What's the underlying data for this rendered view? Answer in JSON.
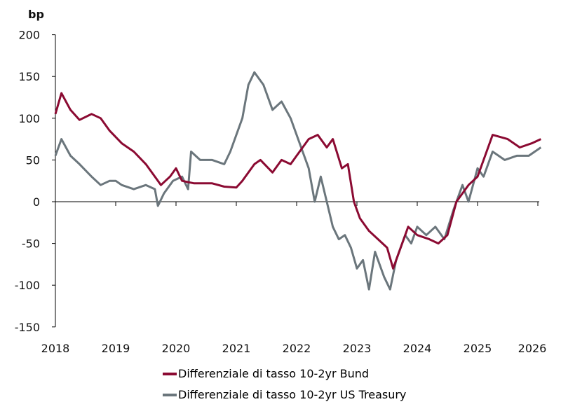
{
  "chart_data": {
    "type": "line",
    "ylabel": "bp",
    "ylim": [
      -150,
      200
    ],
    "yticks": [
      -150,
      -100,
      -50,
      0,
      50,
      100,
      150,
      200
    ],
    "xlim": [
      2018,
      2026.1
    ],
    "xticks": [
      "2018",
      "2019",
      "2020",
      "2021",
      "2022",
      "2023",
      "2024",
      "2025",
      "2026"
    ],
    "grid": false,
    "legend": "bottom",
    "series": [
      {
        "name": "Differenziale di tasso 10-2yr Bund",
        "color": "#8b0a32",
        "x": [
          2018.0,
          2018.1,
          2018.25,
          2018.4,
          2018.6,
          2018.75,
          2018.9,
          2019.1,
          2019.3,
          2019.5,
          2019.65,
          2019.75,
          2019.9,
          2020.0,
          2020.1,
          2020.3,
          2020.6,
          2020.8,
          2021.0,
          2021.1,
          2021.3,
          2021.4,
          2021.6,
          2021.75,
          2021.9,
          2022.0,
          2022.2,
          2022.35,
          2022.5,
          2022.6,
          2022.75,
          2022.85,
          2022.95,
          2023.05,
          2023.2,
          2023.35,
          2023.5,
          2023.6,
          2023.75,
          2023.85,
          2024.0,
          2024.2,
          2024.35,
          2024.5,
          2024.65,
          2024.85,
          2025.0,
          2025.15,
          2025.25,
          2025.5,
          2025.7,
          2025.9,
          2026.05
        ],
        "y": [
          105,
          130,
          110,
          98,
          105,
          100,
          85,
          70,
          60,
          45,
          30,
          20,
          30,
          40,
          25,
          22,
          22,
          18,
          17,
          25,
          45,
          50,
          35,
          50,
          45,
          55,
          75,
          80,
          65,
          75,
          40,
          45,
          0,
          -20,
          -35,
          -45,
          -55,
          -80,
          -50,
          -30,
          -40,
          -45,
          -50,
          -40,
          0,
          20,
          30,
          60,
          80,
          75,
          65,
          70,
          75
        ]
      },
      {
        "name": "Differenziale di tasso 10-2yr US Treasury",
        "color": "#6b767c",
        "x": [
          2018.0,
          2018.1,
          2018.25,
          2018.4,
          2018.6,
          2018.75,
          2018.9,
          2019.0,
          2019.1,
          2019.3,
          2019.5,
          2019.65,
          2019.7,
          2019.8,
          2019.95,
          2020.1,
          2020.2,
          2020.25,
          2020.4,
          2020.6,
          2020.8,
          2020.9,
          2021.0,
          2021.1,
          2021.2,
          2021.3,
          2021.45,
          2021.6,
          2021.75,
          2021.9,
          2022.0,
          2022.1,
          2022.2,
          2022.3,
          2022.4,
          2022.5,
          2022.6,
          2022.7,
          2022.8,
          2022.9,
          2023.0,
          2023.1,
          2023.2,
          2023.3,
          2023.45,
          2023.55,
          2023.65,
          2023.8,
          2023.9,
          2024.0,
          2024.15,
          2024.3,
          2024.45,
          2024.6,
          2024.75,
          2024.85,
          2025.0,
          2025.1,
          2025.25,
          2025.45,
          2025.65,
          2025.85,
          2026.05
        ],
        "y": [
          55,
          75,
          55,
          45,
          30,
          20,
          25,
          25,
          20,
          15,
          20,
          15,
          -5,
          10,
          25,
          30,
          15,
          60,
          50,
          50,
          45,
          60,
          80,
          100,
          140,
          155,
          140,
          110,
          120,
          100,
          80,
          60,
          40,
          0,
          30,
          0,
          -30,
          -45,
          -40,
          -55,
          -80,
          -70,
          -105,
          -60,
          -90,
          -105,
          -70,
          -40,
          -50,
          -30,
          -40,
          -30,
          -45,
          -10,
          20,
          0,
          40,
          30,
          60,
          50,
          55,
          55,
          65
        ]
      }
    ]
  }
}
